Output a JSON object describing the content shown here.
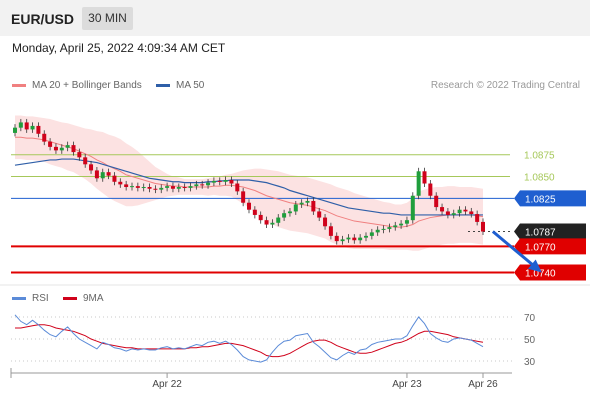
{
  "header": {
    "symbol": "EUR/USD",
    "timeframe": "30 MIN",
    "datetime": "Monday, April 25, 2022 4:09:34 AM CET",
    "copyright": "Research © 2022 Trading Central"
  },
  "colors": {
    "bullish": "#1f9e3c",
    "bearish": "#d0021b",
    "ma20": "#f08080",
    "bollinger": "#fbd6d6",
    "ma50": "#2f5fa8",
    "support": "#e00000",
    "resistance": "#a6c85a",
    "pivot": "#1f5fd0",
    "rsi": "#5b8bd8",
    "rsi_ma": "#d0021b"
  },
  "chart_data": [
    {
      "type": "candlestick",
      "legend": [
        "MA 20 + Bollinger Bands",
        "MA 50"
      ],
      "ylim": [
        1.0728,
        1.094
      ],
      "levels": [
        {
          "value": 1.0875,
          "label": "1.0875",
          "kind": "resistance"
        },
        {
          "value": 1.085,
          "label": "1.0850",
          "kind": "resistance"
        },
        {
          "value": 1.0825,
          "label": "1.0825",
          "kind": "pivot"
        },
        {
          "value": 1.0787,
          "label": "1.0787",
          "kind": "current"
        },
        {
          "value": 1.077,
          "label": "1.0770",
          "kind": "support"
        },
        {
          "value": 1.074,
          "label": "1.0740",
          "kind": "support"
        }
      ],
      "x_labels": [
        {
          "label": "Apr 22",
          "index": 26
        },
        {
          "label": "Apr 23",
          "index": 67
        },
        {
          "label": "Apr 26",
          "index": 80
        }
      ],
      "closes": [
        1.0906,
        1.0912,
        1.0904,
        1.0908,
        1.0899,
        1.089,
        1.0884,
        1.088,
        1.0883,
        1.0886,
        1.0878,
        1.0872,
        1.0864,
        1.0857,
        1.0848,
        1.0855,
        1.0851,
        1.0844,
        1.0841,
        1.0838,
        1.0839,
        1.0837,
        1.0838,
        1.0836,
        1.0835,
        1.0837,
        1.0839,
        1.0836,
        1.0838,
        1.0837,
        1.0839,
        1.0841,
        1.084,
        1.0843,
        1.0845,
        1.0844,
        1.0846,
        1.0842,
        1.0833,
        1.082,
        1.0812,
        1.0806,
        1.08,
        1.0795,
        1.0797,
        1.0803,
        1.0808,
        1.081,
        1.0818,
        1.082,
        1.0822,
        1.081,
        1.0803,
        1.0793,
        1.0782,
        1.0776,
        1.0778,
        1.078,
        1.0777,
        1.078,
        1.0782,
        1.0786,
        1.0789,
        1.079,
        1.0792,
        1.0794,
        1.0796,
        1.08,
        1.0828,
        1.0856,
        1.0842,
        1.0828,
        1.0815,
        1.081,
        1.0806,
        1.0808,
        1.0812,
        1.081,
        1.0807,
        1.0798,
        1.0787
      ],
      "ma20": [
        1.0895,
        1.0895,
        1.0894,
        1.0894,
        1.0893,
        1.0892,
        1.089,
        1.0888,
        1.0886,
        1.0884,
        1.0882,
        1.0879,
        1.0876,
        1.0873,
        1.0869,
        1.0866,
        1.0862,
        1.0859,
        1.0856,
        1.0852,
        1.085,
        1.0848,
        1.0846,
        1.0844,
        1.0842,
        1.0841,
        1.084,
        1.0839,
        1.0839,
        1.0838,
        1.0838,
        1.0838,
        1.0838,
        1.0838,
        1.0839,
        1.0839,
        1.084,
        1.084,
        1.0839,
        1.0838,
        1.0836,
        1.0834,
        1.0831,
        1.0828,
        1.0826,
        1.0824,
        1.0822,
        1.082,
        1.0819,
        1.0818,
        1.0817,
        1.0815,
        1.0813,
        1.0811,
        1.0808,
        1.0805,
        1.0803,
        1.0801,
        1.0799,
        1.0798,
        1.0797,
        1.0796,
        1.0795,
        1.0794,
        1.0793,
        1.0792,
        1.0792,
        1.0793,
        1.0795,
        1.0799,
        1.0801,
        1.0803,
        1.0804,
        1.0805,
        1.0806,
        1.0806,
        1.0806,
        1.0806,
        1.0806,
        1.0805,
        1.0804
      ],
      "band_width": [
        0.0025,
        0.0025,
        0.0025,
        0.0025,
        0.0025,
        0.0025,
        0.0026,
        0.0026,
        0.0026,
        0.0027,
        0.0027,
        0.0028,
        0.0029,
        0.0031,
        0.0033,
        0.0035,
        0.0036,
        0.0037,
        0.0037,
        0.0036,
        0.0034,
        0.0031,
        0.0027,
        0.0023,
        0.0019,
        0.0016,
        0.0013,
        0.0011,
        0.001,
        0.0009,
        0.0009,
        0.0009,
        0.0009,
        0.001,
        0.001,
        0.0011,
        0.0012,
        0.0013,
        0.0016,
        0.0019,
        0.0022,
        0.0025,
        0.0028,
        0.003,
        0.0031,
        0.0032,
        0.0032,
        0.0032,
        0.0032,
        0.0032,
        0.0032,
        0.0032,
        0.0032,
        0.0032,
        0.0033,
        0.0033,
        0.0033,
        0.0033,
        0.0032,
        0.0031,
        0.003,
        0.0029,
        0.0028,
        0.0027,
        0.0027,
        0.0026,
        0.0026,
        0.0027,
        0.003,
        0.0034,
        0.0034,
        0.0034,
        0.0034,
        0.0033,
        0.0033,
        0.0033,
        0.0032,
        0.0032,
        0.0032,
        0.0032,
        0.0032
      ],
      "ma50": [
        1.0863,
        1.0864,
        1.0865,
        1.0866,
        1.0867,
        1.0868,
        1.0869,
        1.0869,
        1.087,
        1.087,
        1.087,
        1.0869,
        1.0868,
        1.0867,
        1.0866,
        1.0864,
        1.0862,
        1.086,
        1.0858,
        1.0856,
        1.0854,
        1.0852,
        1.085,
        1.0848,
        1.0847,
        1.0846,
        1.0845,
        1.0844,
        1.0844,
        1.0843,
        1.0843,
        1.0843,
        1.0843,
        1.0844,
        1.0844,
        1.0845,
        1.0845,
        1.0846,
        1.0846,
        1.0846,
        1.0846,
        1.0845,
        1.0844,
        1.0843,
        1.0841,
        1.0839,
        1.0837,
        1.0834,
        1.0832,
        1.083,
        1.0828,
        1.0826,
        1.0824,
        1.0822,
        1.082,
        1.0818,
        1.0816,
        1.0814,
        1.0813,
        1.0812,
        1.0811,
        1.081,
        1.0809,
        1.0808,
        1.0808,
        1.0807,
        1.0806,
        1.0806,
        1.0806,
        1.0806,
        1.0806,
        1.0806,
        1.0806,
        1.0806,
        1.0806,
        1.0806,
        1.0806,
        1.0806,
        1.0806,
        1.0806,
        1.0806
      ],
      "arrow": {
        "from": [
          81,
          1.0787
        ],
        "to": [
          90,
          1.074
        ]
      }
    },
    {
      "type": "line",
      "legend": [
        "RSI",
        "9MA"
      ],
      "ylim": [
        20,
        80
      ],
      "y_ticks": [
        70,
        50,
        30
      ],
      "rsi": [
        72,
        66,
        63,
        67,
        63,
        58,
        54,
        52,
        57,
        61,
        55,
        50,
        47,
        44,
        41,
        47,
        45,
        42,
        41,
        39,
        41,
        40,
        41,
        40,
        40,
        42,
        43,
        41,
        42,
        41,
        43,
        45,
        44,
        47,
        48,
        46,
        48,
        45,
        40,
        34,
        31,
        30,
        29,
        31,
        38,
        44,
        48,
        49,
        53,
        54,
        55,
        47,
        43,
        38,
        33,
        31,
        35,
        38,
        36,
        40,
        41,
        45,
        47,
        48,
        49,
        50,
        50,
        53,
        62,
        70,
        64,
        55,
        51,
        48,
        47,
        50,
        51,
        50,
        49,
        46,
        43
      ],
      "ma": [
        60,
        60,
        61,
        62,
        63,
        63,
        62,
        60,
        59,
        58,
        57,
        55,
        53,
        50,
        48,
        46,
        45,
        44,
        43,
        42,
        42,
        41,
        41,
        41,
        41,
        41,
        41,
        41,
        41,
        41,
        42,
        42,
        43,
        43,
        44,
        45,
        46,
        46,
        45,
        44,
        42,
        40,
        38,
        35,
        34,
        34,
        35,
        37,
        40,
        43,
        46,
        48,
        49,
        49,
        47,
        44,
        42,
        40,
        38,
        37,
        37,
        38,
        40,
        42,
        44,
        46,
        47,
        49,
        52,
        55,
        57,
        57,
        56,
        55,
        54,
        52,
        51,
        50,
        49,
        48,
        47
      ]
    }
  ]
}
